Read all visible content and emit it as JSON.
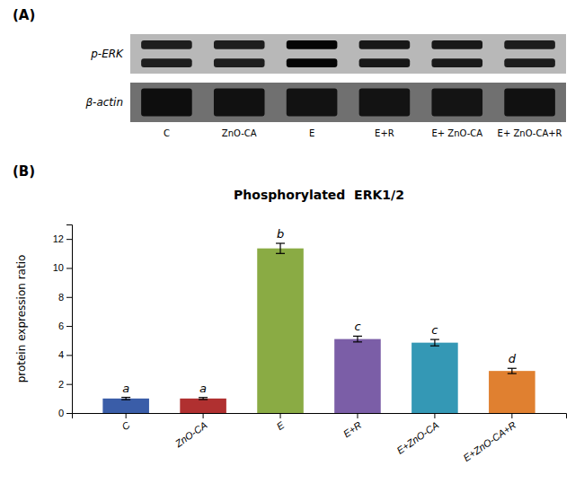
{
  "chart_data": [
    {
      "type": "blot",
      "annotations": [
        "(A)"
      ],
      "categories": [
        "C",
        "ZnO-CA",
        "E",
        "E+R",
        "E+ ZnO-CA",
        "E+ ZnO-CA+R"
      ],
      "series": [
        {
          "name": "p-ERK",
          "values": [
            0.22,
            0.22,
            0.88,
            0.38,
            0.35,
            0.25
          ]
        },
        {
          "name": "β-actin",
          "values": [
            0.82,
            0.78,
            0.76,
            0.75,
            0.74,
            0.78
          ]
        }
      ],
      "tick_labels": "x"
    },
    {
      "type": "bar",
      "annotations": [
        "(B)"
      ],
      "title": "Phosphorylated  ERK1/2",
      "ylabel": "protein expression ratio",
      "categories": [
        "C",
        "ZnO-CA",
        "E",
        "E+R",
        "E+ZnO-CA",
        "E+ZnO-CA+R"
      ],
      "values": [
        1.0,
        1.0,
        11.35,
        5.1,
        4.85,
        2.9
      ],
      "errors": [
        0.08,
        0.07,
        0.35,
        0.2,
        0.22,
        0.18
      ],
      "significance_labels": [
        "a",
        "a",
        "b",
        "c",
        "c",
        "d"
      ],
      "colors": [
        "#3a5da8",
        "#b03030",
        "#8aab44",
        "#7b5ea7",
        "#3498b5",
        "#e08030"
      ],
      "ylim": [
        0,
        13
      ],
      "yticks": [
        0,
        2,
        4,
        6,
        8,
        10,
        12
      ],
      "grid": false
    }
  ]
}
